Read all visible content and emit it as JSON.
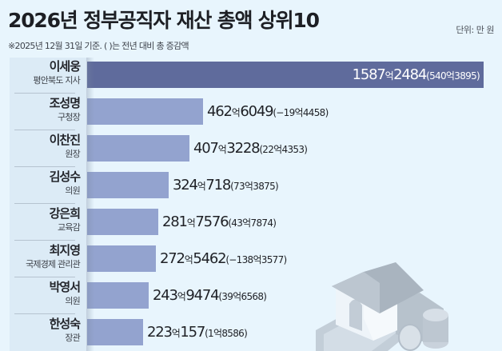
{
  "header": {
    "title": "2026년 정부공직자 재산 총액 상위10",
    "unit": "단위: 만 원",
    "subtitle": "※2025년 12월 31일 기준. ( )는 전년 대비 총 증감액"
  },
  "rows": [
    {
      "name": "이세웅",
      "role": "평안북도 지사",
      "eok": "1587",
      "man": "2484",
      "change": "(540억3895)"
    },
    {
      "name": "조성명",
      "role": "구청장",
      "eok": "462",
      "man": "6049",
      "change": "(−19억4458)"
    },
    {
      "name": "이찬진",
      "role": "원장",
      "eok": "407",
      "man": "3228",
      "change": "(22억4353)"
    },
    {
      "name": "김성수",
      "role": "의원",
      "eok": "324",
      "man": "718",
      "change": "(73억3875)"
    },
    {
      "name": "강은희",
      "role": "교육감",
      "eok": "281",
      "man": "7576",
      "change": "(43억7874)"
    },
    {
      "name": "최지영",
      "role": "국제경제 관리관",
      "eok": "272",
      "man": "5462",
      "change": "(−138억3577)"
    },
    {
      "name": "박영서",
      "role": "의원",
      "eok": "243",
      "man": "9474",
      "change": "(39억6568)"
    },
    {
      "name": "한성숙",
      "role": "장관",
      "eok": "223",
      "man": "157",
      "change": "(1억8586)"
    }
  ],
  "eok_label": "억",
  "colors": {
    "background": "#e8f5fd",
    "top_bar": "#5f6b9c",
    "bar": "#93a3cf",
    "label_panel": "#dcebf6"
  },
  "chart_data": {
    "type": "bar",
    "orientation": "horizontal",
    "title": "2026년 정부공직자 재산 총액 상위10",
    "subtitle": "※2025년 12월 31일 기준. ( )는 전년 대비 총 증감액",
    "unit": "만 원",
    "categories": [
      "이세웅 (평안북도 지사)",
      "조성명 (구청장)",
      "이찬진 (원장)",
      "김성수 (의원)",
      "강은희 (교육감)",
      "최지영 (국제경제 관리관)",
      "박영서 (의원)",
      "한성숙 (장관)"
    ],
    "series": [
      {
        "name": "재산 총액 (만 원)",
        "values": [
          15872484,
          4626049,
          4073228,
          3240718,
          2817576,
          2725462,
          2439474,
          2230157
        ]
      },
      {
        "name": "전년 대비 증감액 (만 원)",
        "values": [
          5403895,
          -194458,
          224353,
          733875,
          437874,
          -1383577,
          396568,
          18586
        ]
      }
    ],
    "value_labels": [
      "1587억2484(540억3895)",
      "462억6049(−19억4458)",
      "407억3228(22억4353)",
      "324억718(73억3875)",
      "281억7576(43억7874)",
      "272억5462(−138억3577)",
      "243억9474(39억6568)",
      "223억157(1억8586)"
    ],
    "xlabel": "",
    "ylabel": "",
    "grid": false,
    "legend": "none"
  }
}
